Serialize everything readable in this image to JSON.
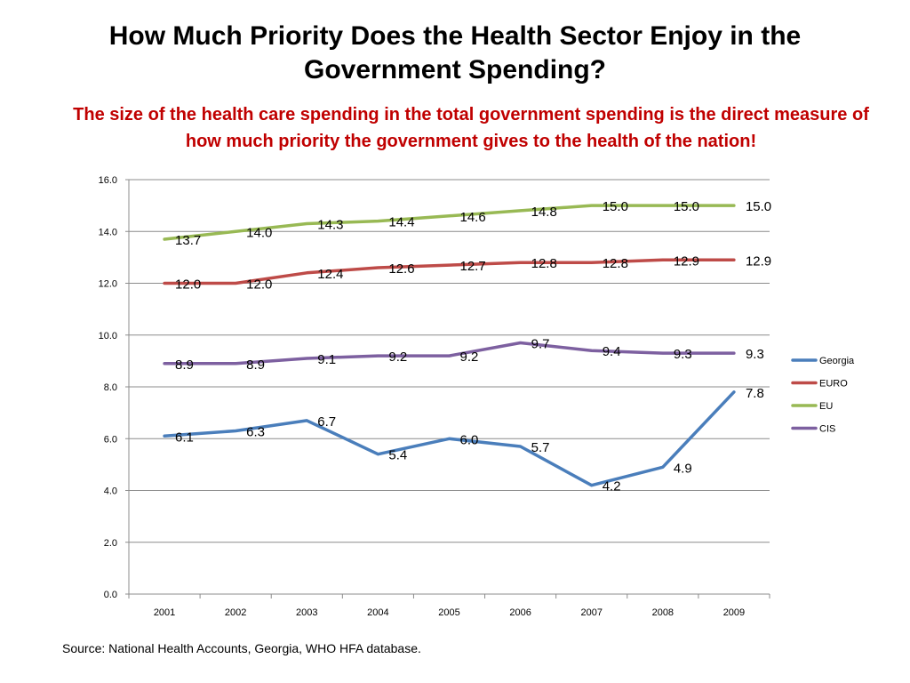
{
  "slide": {
    "title": "How Much Priority Does the Health Sector Enjoy in the Government Spending?",
    "subtitle": "The size of the health care spending in the total government spending is the direct measure of how much priority the government gives to the health of the nation!",
    "source": "Source: National Health Accounts, Georgia, WHO HFA database."
  },
  "chart_data": {
    "type": "line",
    "categories": [
      "2001",
      "2002",
      "2003",
      "2004",
      "2005",
      "2006",
      "2007",
      "2008",
      "2009"
    ],
    "ylim": [
      0,
      16
    ],
    "yticks": [
      "0.0",
      "2.0",
      "4.0",
      "6.0",
      "8.0",
      "10.0",
      "12.0",
      "14.0",
      "16.0"
    ],
    "grid": true,
    "legend": "right",
    "series": [
      {
        "name": "Georgia",
        "color": "#4a7ebb",
        "values": [
          6.1,
          6.3,
          6.7,
          5.4,
          6.0,
          5.7,
          4.2,
          4.9,
          7.8
        ],
        "labels": [
          "6.1",
          "6.3",
          "6.7",
          "5.4",
          "6.0",
          "5.7",
          "4.2",
          "4.9",
          "7.8"
        ]
      },
      {
        "name": "EURO",
        "color": "#be4b48",
        "values": [
          12.0,
          12.0,
          12.4,
          12.6,
          12.7,
          12.8,
          12.8,
          12.9,
          12.9
        ],
        "labels": [
          "12.0",
          "12.0",
          "12.4",
          "12.6",
          "12.7",
          "12.8",
          "12.8",
          "12.9",
          "12.9"
        ]
      },
      {
        "name": "EU",
        "color": "#98b954",
        "values": [
          13.7,
          14.0,
          14.3,
          14.4,
          14.6,
          14.8,
          15.0,
          15.0,
          15.0
        ],
        "labels": [
          "13.7",
          "14.0",
          "14.3",
          "14.4",
          "14.6",
          "14.8",
          "15.0",
          "15.0",
          "15.0"
        ]
      },
      {
        "name": "CIS",
        "color": "#7d60a0",
        "values": [
          8.9,
          8.9,
          9.1,
          9.2,
          9.2,
          9.7,
          9.4,
          9.3,
          9.3
        ],
        "labels": [
          "8.9",
          "8.9",
          "9.1",
          "9.2",
          "9.2",
          "9.7",
          "9.4",
          "9.3",
          "9.3"
        ]
      }
    ]
  }
}
